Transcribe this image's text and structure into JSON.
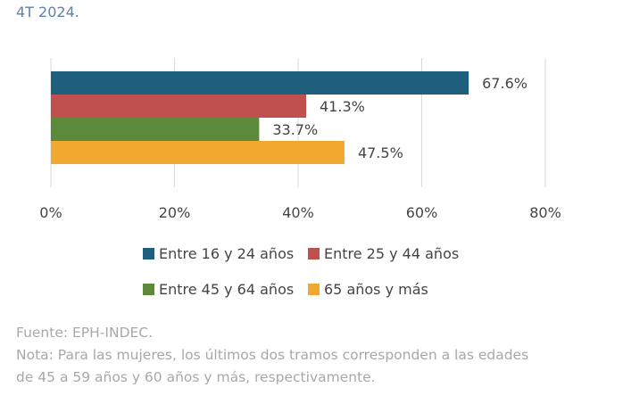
{
  "title_fragment": "4T 2024.",
  "chart_data": {
    "type": "bar",
    "orientation": "horizontal",
    "categories": [
      "Entre 16 y 24 años",
      "Entre 25 y 44 años",
      "Entre 45 y 64 años",
      "65 años y más"
    ],
    "values": [
      67.6,
      41.3,
      33.7,
      47.5
    ],
    "data_labels": [
      "67.6%",
      "41.3%",
      "33.7%",
      "47.5%"
    ],
    "colors": [
      "#1f5f7e",
      "#c0504d",
      "#5c8a3a",
      "#f0a92e"
    ],
    "xlim": [
      0,
      80
    ],
    "x_ticks": [
      "0%",
      "20%",
      "40%",
      "60%",
      "80%"
    ],
    "grid": true,
    "legend_position": "bottom"
  },
  "footnotes": {
    "source": "Fuente: EPH-INDEC.",
    "note_line1": "Nota: Para las mujeres, los últimos dos tramos corresponden a las edades",
    "note_line2": "de 45 a 59 años y 60 años y más, respectivamente."
  }
}
